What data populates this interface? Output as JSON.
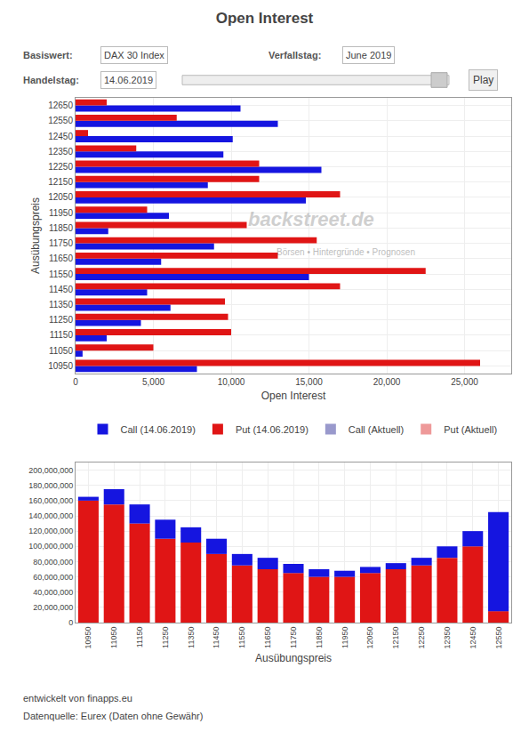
{
  "chart_data": [
    {
      "type": "bar",
      "orientation": "horizontal",
      "title": "Open Interest",
      "xlabel": "Open Interest",
      "ylabel": "Ausübungspreis",
      "categories": [
        "10950",
        "11050",
        "11150",
        "11250",
        "11350",
        "11450",
        "11550",
        "11650",
        "11750",
        "11850",
        "11950",
        "12050",
        "12150",
        "12250",
        "12350",
        "12450",
        "12550",
        "12650"
      ],
      "series": [
        {
          "name": "Call (14.06.2019)",
          "color": "#1515e0",
          "values": [
            7800,
            450,
            2000,
            4200,
            6100,
            4600,
            15000,
            5500,
            8900,
            2100,
            6000,
            14800,
            8500,
            15800,
            9500,
            10100,
            13000,
            10600
          ]
        },
        {
          "name": "Put (14.06.2019)",
          "color": "#e01515",
          "values": [
            26000,
            5000,
            10000,
            9800,
            9600,
            17000,
            22500,
            13000,
            15500,
            11000,
            4600,
            17000,
            11800,
            11800,
            3900,
            800,
            6500,
            2000
          ]
        },
        {
          "name": "Call (Aktuell)",
          "color": "#9999cc",
          "values": [
            null,
            null,
            null,
            null,
            null,
            null,
            null,
            null,
            null,
            null,
            null,
            null,
            null,
            null,
            null,
            null,
            null,
            null
          ]
        },
        {
          "name": "Put (Aktuell)",
          "color": "#ee9999",
          "values": [
            null,
            null,
            null,
            null,
            null,
            null,
            null,
            null,
            null,
            null,
            null,
            null,
            null,
            null,
            null,
            null,
            null,
            null
          ]
        }
      ],
      "xlim": [
        0,
        28000
      ],
      "xticks": [
        0,
        {
          "value": 5000,
          "label": "5,000"
        },
        {
          "value": 10000,
          "label": "10,000"
        },
        {
          "value": 15000,
          "label": "15,000"
        },
        {
          "value": 20000,
          "label": "20,000"
        },
        {
          "value": 25000,
          "label": "25,000"
        }
      ],
      "grid": true,
      "legend": "bottom",
      "annotations": [
        "Basiswert:",
        "DAX 30 Index",
        "Verfallstag:",
        "June 2019",
        "Handelstag:",
        "14.06.2019",
        "Play",
        "backstreet.de",
        "Börsen • Hintergründe • Prognosen"
      ]
    },
    {
      "type": "bar",
      "stacked": true,
      "xlabel": "Ausübungspreis",
      "categories": [
        "10950",
        "11050",
        "11150",
        "11250",
        "11350",
        "11450",
        "11550",
        "11650",
        "11750",
        "11850",
        "11950",
        "12050",
        "12150",
        "12250",
        "12350",
        "12450",
        "12550"
      ],
      "series": [
        {
          "name": "Put (14.06.2019)",
          "color": "#e01515",
          "values": [
            160000000,
            155000000,
            130000000,
            110000000,
            105000000,
            90000000,
            75000000,
            70000000,
            65000000,
            60000000,
            60000000,
            65000000,
            70000000,
            75000000,
            85000000,
            100000000,
            15000000
          ]
        },
        {
          "name": "Call (14.06.2019)",
          "color": "#1515e0",
          "values": [
            5000000,
            20000000,
            25000000,
            25000000,
            20000000,
            20000000,
            15000000,
            15000000,
            12000000,
            10000000,
            8000000,
            8000000,
            8000000,
            10000000,
            15000000,
            20000000,
            130000000
          ]
        }
      ],
      "ylim": [
        0,
        210000000
      ],
      "yticks": [
        0,
        {
          "value": 20000000,
          "label": "20,000,000"
        },
        {
          "value": 40000000,
          "label": "40,000,000"
        },
        {
          "value": 60000000,
          "label": "60,000,000"
        },
        {
          "value": 80000000,
          "label": "80,000,000"
        },
        {
          "value": 100000000,
          "label": "100,000,000"
        },
        {
          "value": 120000000,
          "label": "120,000,000"
        },
        {
          "value": 140000000,
          "label": "140,000,000"
        },
        {
          "value": 160000000,
          "label": "160,000,000"
        },
        {
          "value": 180000000,
          "label": "180,000,000"
        },
        {
          "value": 200000000,
          "label": "200,000,000"
        }
      ],
      "grid": true,
      "annotations": [
        "entwickelt von finapps.eu",
        "Datenquelle: Eurex (Daten ohne Gewähr)"
      ]
    }
  ]
}
